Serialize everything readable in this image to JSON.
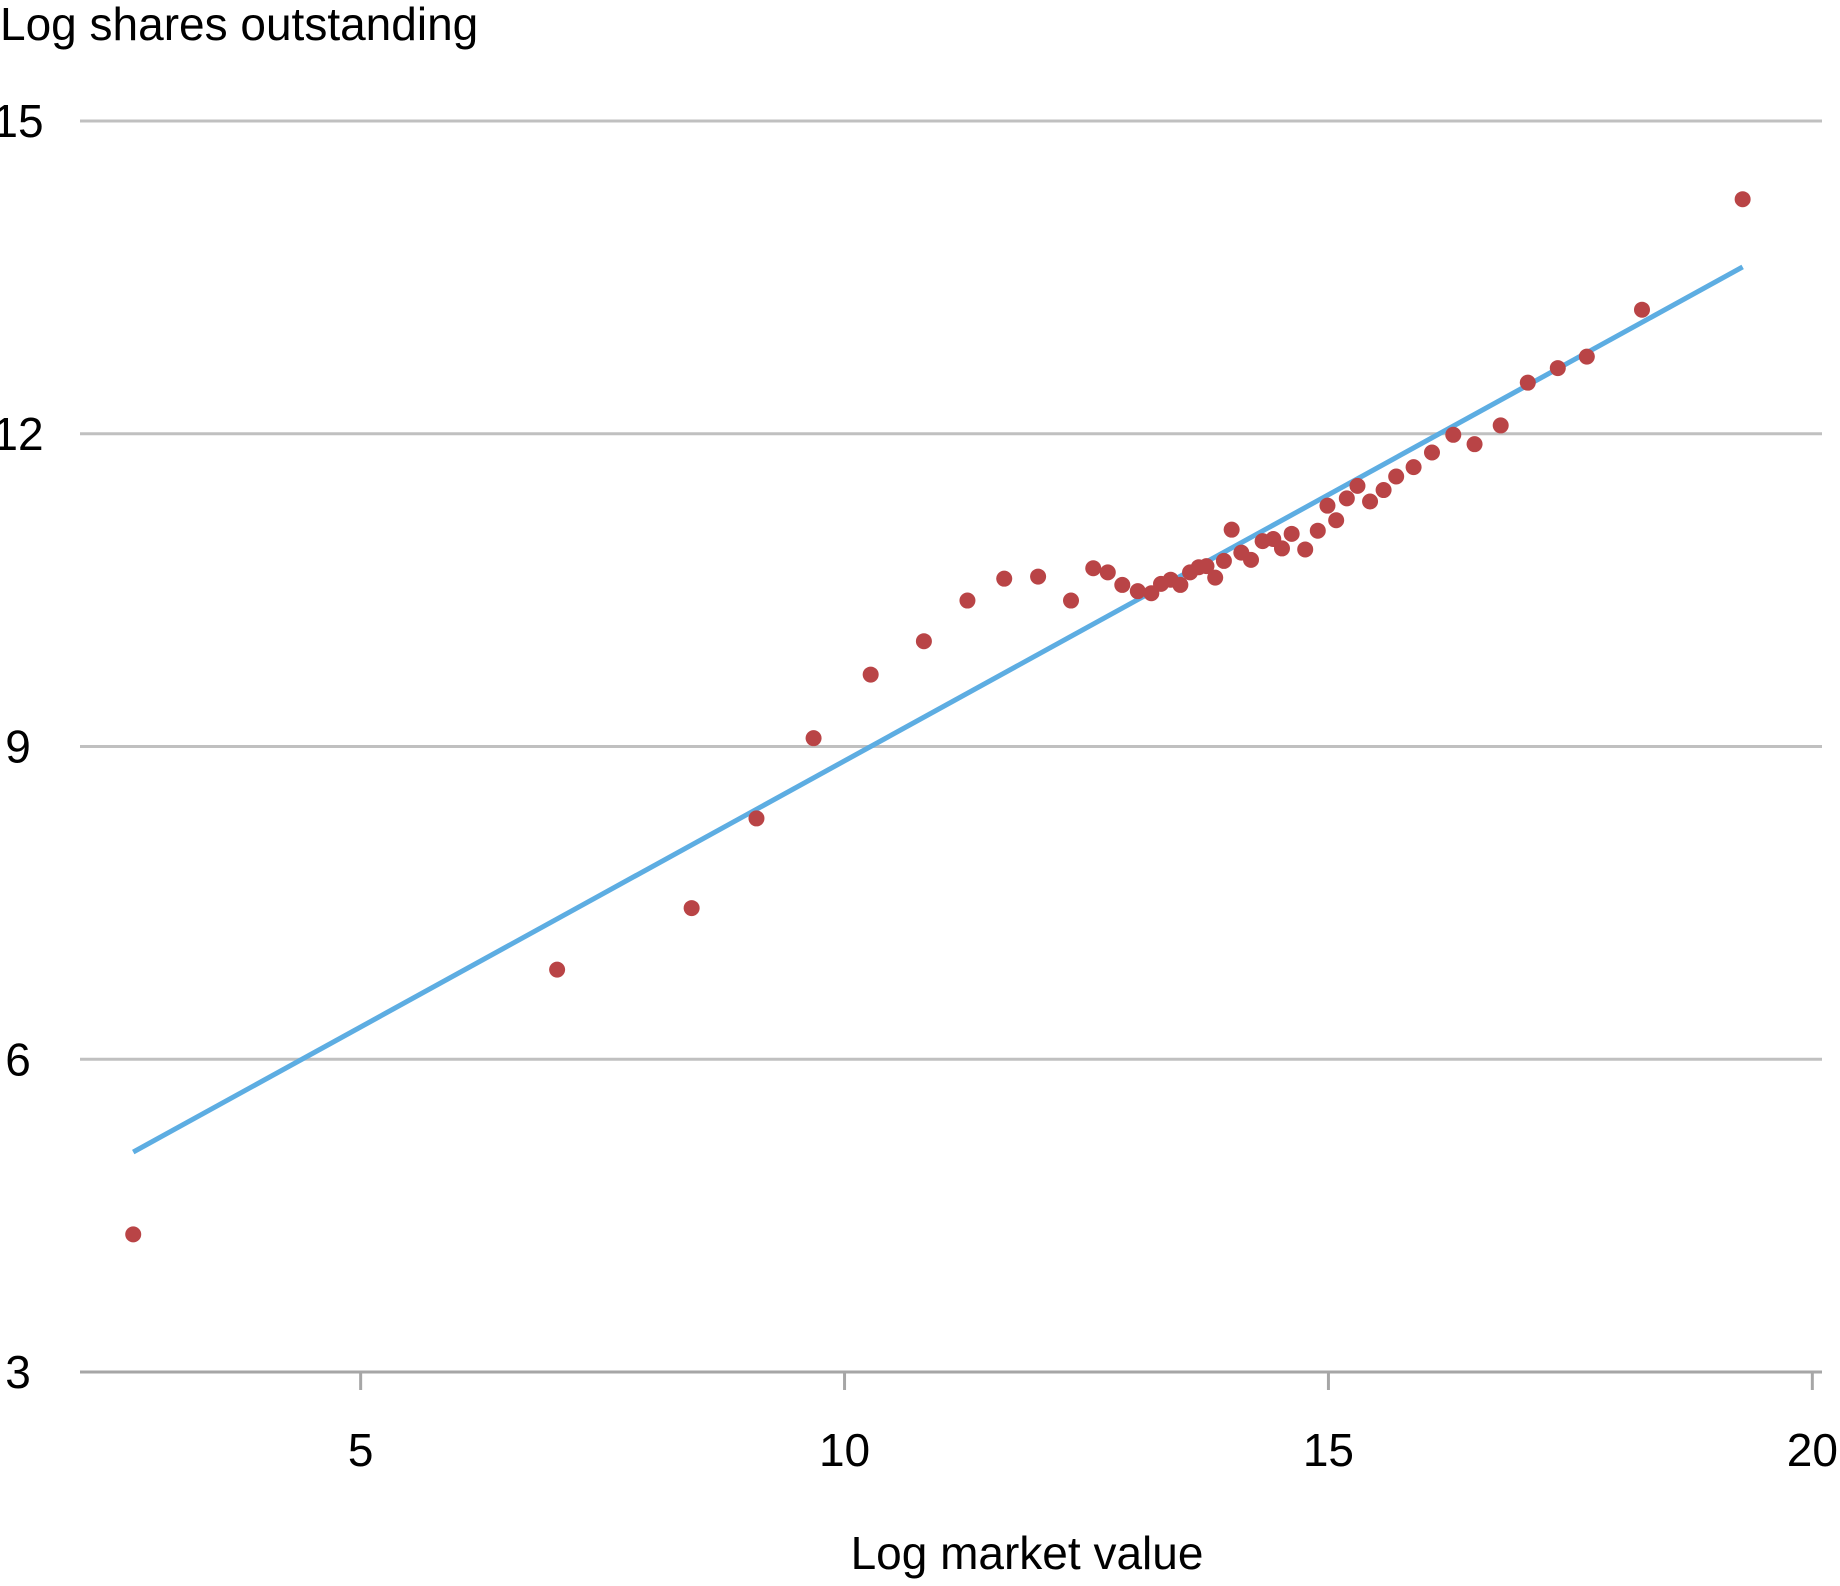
{
  "chart_data": {
    "type": "scatter",
    "title": "",
    "ylabel": "Log shares outstanding",
    "xlabel": "Log market value",
    "xlim": [
      2.1,
      20.1
    ],
    "ylim": [
      3,
      15
    ],
    "x_ticks": [
      5,
      10,
      15,
      20
    ],
    "y_ticks": [
      3,
      6,
      9,
      12,
      15
    ],
    "grid": "horizontal",
    "legend": "none",
    "colors": {
      "points": "#B94446",
      "fit_line": "#5DADE2",
      "grid": "#C0C0C0",
      "axis": "#A6A6A6"
    },
    "series": [
      {
        "kind": "points",
        "points": [
          [
            2.65,
            4.32
          ],
          [
            7.03,
            6.86
          ],
          [
            8.42,
            7.45
          ],
          [
            9.09,
            8.31
          ],
          [
            9.68,
            9.08
          ],
          [
            10.27,
            9.69
          ],
          [
            10.82,
            10.01
          ],
          [
            11.27,
            10.4
          ],
          [
            11.65,
            10.61
          ],
          [
            12.0,
            10.63
          ],
          [
            12.34,
            10.4
          ],
          [
            12.57,
            10.71
          ],
          [
            12.72,
            10.67
          ],
          [
            12.87,
            10.55
          ],
          [
            13.03,
            10.49
          ],
          [
            13.17,
            10.47
          ],
          [
            13.27,
            10.56
          ],
          [
            13.37,
            10.6
          ],
          [
            13.47,
            10.55
          ],
          [
            13.57,
            10.67
          ],
          [
            13.66,
            10.72
          ],
          [
            13.74,
            10.73
          ],
          [
            13.83,
            10.62
          ],
          [
            13.92,
            10.78
          ],
          [
            14.0,
            11.08
          ],
          [
            14.1,
            10.86
          ],
          [
            14.2,
            10.79
          ],
          [
            14.32,
            10.97
          ],
          [
            14.43,
            10.99
          ],
          [
            14.52,
            10.9
          ],
          [
            14.62,
            11.04
          ],
          [
            14.76,
            10.89
          ],
          [
            14.89,
            11.07
          ],
          [
            14.99,
            11.31
          ],
          [
            15.08,
            11.17
          ],
          [
            15.19,
            11.38
          ],
          [
            15.3,
            11.5
          ],
          [
            15.43,
            11.35
          ],
          [
            15.57,
            11.46
          ],
          [
            15.7,
            11.59
          ],
          [
            15.88,
            11.68
          ],
          [
            16.07,
            11.82
          ],
          [
            16.29,
            11.99
          ],
          [
            16.51,
            11.9
          ],
          [
            16.78,
            12.08
          ],
          [
            17.06,
            12.49
          ],
          [
            17.37,
            12.63
          ],
          [
            17.67,
            12.74
          ],
          [
            18.24,
            13.19
          ],
          [
            19.28,
            14.25
          ]
        ]
      },
      {
        "kind": "fit_line",
        "points": [
          [
            2.65,
            5.11
          ],
          [
            19.28,
            13.6
          ]
        ]
      }
    ]
  }
}
